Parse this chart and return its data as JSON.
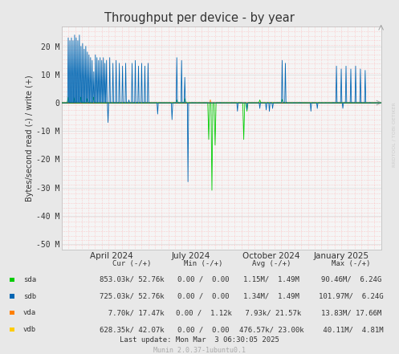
{
  "title": "Throughput per device - by year",
  "ylabel": "Bytes/second read (-) / write (+)",
  "xlabel_ticks": [
    "April 2024",
    "July 2024",
    "October 2024",
    "January 2025"
  ],
  "xlabel_tick_pos": [
    0.155,
    0.405,
    0.655,
    0.875
  ],
  "ylim": [
    -52000000,
    27000000
  ],
  "ytick_vals": [
    -50000000,
    -40000000,
    -30000000,
    -20000000,
    -10000000,
    0,
    10000000,
    20000000
  ],
  "ytick_labels": [
    "-50 M",
    "-40 M",
    "-30 M",
    "-20 M",
    "-10 M",
    "0",
    "10 M",
    "20 M"
  ],
  "bg_color": "#e8e8e8",
  "plot_bg_color": "#f5f5f5",
  "grid_minor_color": "#ffbbbb",
  "colors": {
    "sda": "#00cc00",
    "sdb": "#0066b3",
    "vda": "#ff8000",
    "vdb": "#ffcc00"
  },
  "watermark": "RRDTOOL / TOBI OETIKER",
  "table_headers": [
    "Cur (-/+)",
    "Min (-/+)",
    "Avg (-/+)",
    "Max (-/+)"
  ],
  "row_labels": [
    "sda",
    "sdb",
    "vda",
    "vdb"
  ],
  "row_colors": [
    "#00cc00",
    "#0066b3",
    "#ff8000",
    "#ffcc00"
  ],
  "row_cur": [
    "853.03k/ 52.76k",
    "725.03k/ 52.76k",
    "  7.70k/ 17.47k",
    "628.35k/ 42.07k"
  ],
  "row_min": [
    "0.00 /  0.00",
    "0.00 /  0.00",
    "0.00 /  1.12k",
    "0.00 /  0.00"
  ],
  "row_avg": [
    "1.15M/  1.49M",
    "1.34M/  1.49M",
    " 7.93k/ 21.57k",
    "476.57k/ 23.00k"
  ],
  "row_max": [
    "90.46M/  6.24G",
    "101.97M/  6.24G",
    "13.83M/ 17.66M",
    " 40.11M/  4.81M"
  ],
  "last_update": "Last update: Mon Mar  3 06:30:05 2025",
  "munin_version": "Munin 2.0.37-1ubuntu0.1"
}
